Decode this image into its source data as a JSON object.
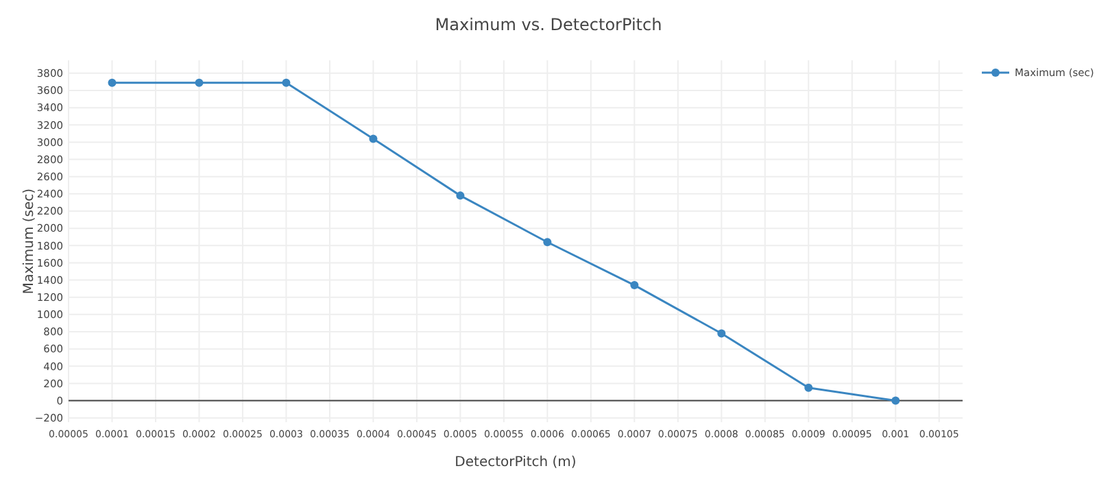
{
  "chart_data": {
    "type": "line",
    "title": "Maximum vs. DetectorPitch",
    "xlabel": "DetectorPitch (m)",
    "ylabel": "Maximum (sec)",
    "x": [
      0.0001,
      0.0002,
      0.0003,
      0.0004,
      0.0005,
      0.0006,
      0.0007,
      0.0008,
      0.0009,
      0.001
    ],
    "series": [
      {
        "name": "Maximum (sec)",
        "color": "#3a86c1",
        "values": [
          3690,
          3690,
          3690,
          3040,
          2380,
          1840,
          1340,
          780,
          150,
          0
        ]
      }
    ],
    "xlim": [
      5e-05,
      0.001077
    ],
    "xticks": [
      {
        "value": 5e-05,
        "label": "0.00005"
      },
      0.0001,
      0.00015,
      0.0002,
      0.00025,
      0.0003,
      0.00035,
      0.0004,
      0.00045,
      0.0005,
      0.00055,
      0.0006,
      0.00065,
      0.0007,
      0.00075,
      0.0008,
      0.00085,
      0.0009,
      0.00095,
      0.001,
      0.00105
    ],
    "ylim": [
      -250,
      3950
    ],
    "yticks": [
      {
        "value": -200,
        "label": "−200"
      },
      0,
      200,
      400,
      600,
      800,
      1000,
      1200,
      1400,
      1600,
      1800,
      2000,
      2200,
      2400,
      2600,
      2800,
      3000,
      3200,
      3400,
      3600,
      3800
    ],
    "grid": true,
    "legend": "top right",
    "marker": "circle",
    "line_style": "solid"
  }
}
